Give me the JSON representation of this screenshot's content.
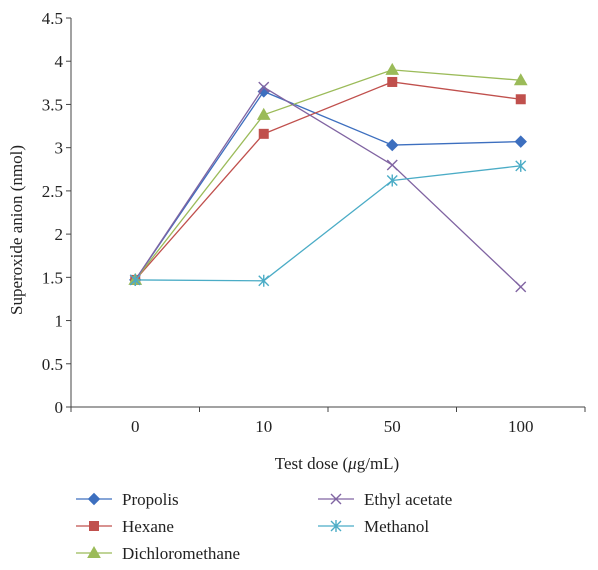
{
  "chart_data": {
    "type": "line",
    "title": "",
    "xlabel_parts": [
      "Test dose (",
      "μ",
      "g/mL)"
    ],
    "ylabel": "Superoxide anion (nmol)",
    "categories": [
      "0",
      "10",
      "50",
      "100"
    ],
    "ylim": [
      0,
      4.5
    ],
    "yticks": [
      "0",
      "0.5",
      "1",
      "1.5",
      "2",
      "2.5",
      "3",
      "3.5",
      "4",
      "4.5"
    ],
    "ytick_values": [
      0,
      0.5,
      1,
      1.5,
      2,
      2.5,
      3,
      3.5,
      4,
      4.5
    ],
    "grid": false,
    "legend_position": "bottom",
    "series": [
      {
        "name": "Propolis",
        "values": [
          1.47,
          3.65,
          3.03,
          3.07
        ],
        "color": "#3d6fbf",
        "marker": "diamond"
      },
      {
        "name": "Hexane",
        "values": [
          1.47,
          3.16,
          3.76,
          3.56
        ],
        "color": "#c0504d",
        "marker": "square"
      },
      {
        "name": "Dichloromethane",
        "values": [
          1.47,
          3.38,
          3.9,
          3.78
        ],
        "color": "#9bbb59",
        "marker": "triangle"
      },
      {
        "name": "Ethyl acetate",
        "values": [
          1.47,
          3.7,
          2.8,
          1.39
        ],
        "color": "#8064a2",
        "marker": "x"
      },
      {
        "name": "Methanol",
        "values": [
          1.47,
          1.46,
          2.62,
          2.79
        ],
        "color": "#4bacc6",
        "marker": "star"
      }
    ]
  }
}
